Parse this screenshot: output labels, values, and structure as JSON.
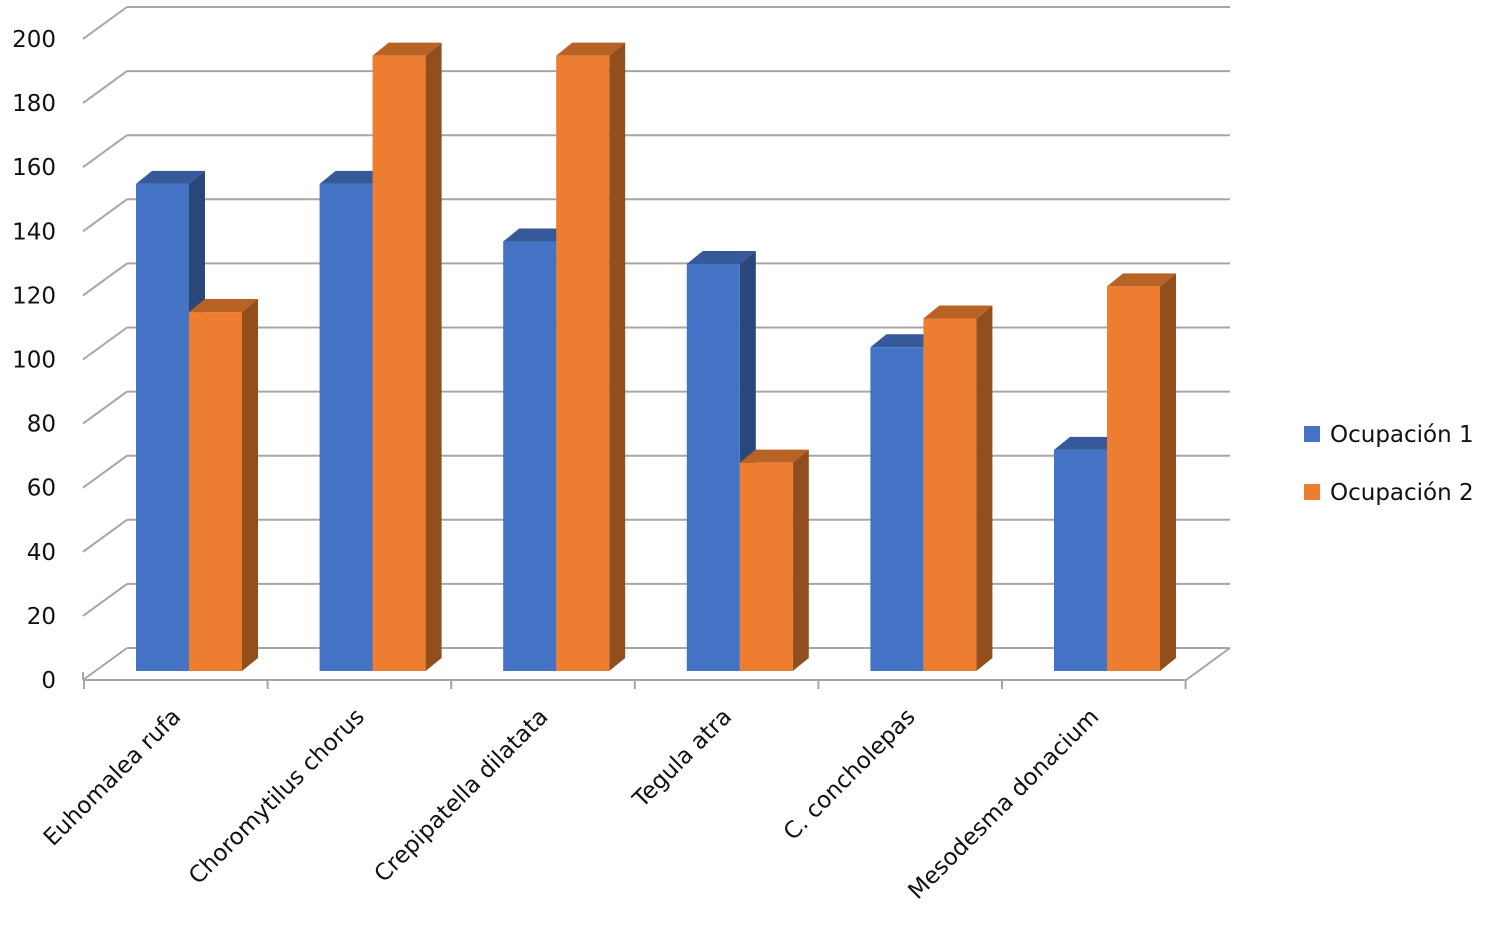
{
  "chart_data": {
    "type": "bar",
    "style": "3d-clustered-column",
    "categories": [
      "Euhomalea rufa",
      "Choromytilus chorus",
      "Crepipatella dilatata",
      "Tegula atra",
      "C. concholepas",
      "Mesodesma donacium"
    ],
    "series": [
      {
        "name": "Ocupación 1",
        "color": "#4472C4",
        "values": [
          152,
          152,
          134,
          127,
          101,
          69
        ]
      },
      {
        "name": "Ocupación 2",
        "color": "#ED7D31",
        "values": [
          112,
          192,
          192,
          65,
          110,
          120
        ]
      }
    ],
    "yticks": [
      "0",
      "20",
      "40",
      "60",
      "80",
      "100",
      "120",
      "140",
      "160",
      "180",
      "200"
    ],
    "ylim": [
      0,
      200
    ],
    "grid": true,
    "legend_position": "right",
    "title": "",
    "xlabel": "",
    "ylabel": ""
  }
}
